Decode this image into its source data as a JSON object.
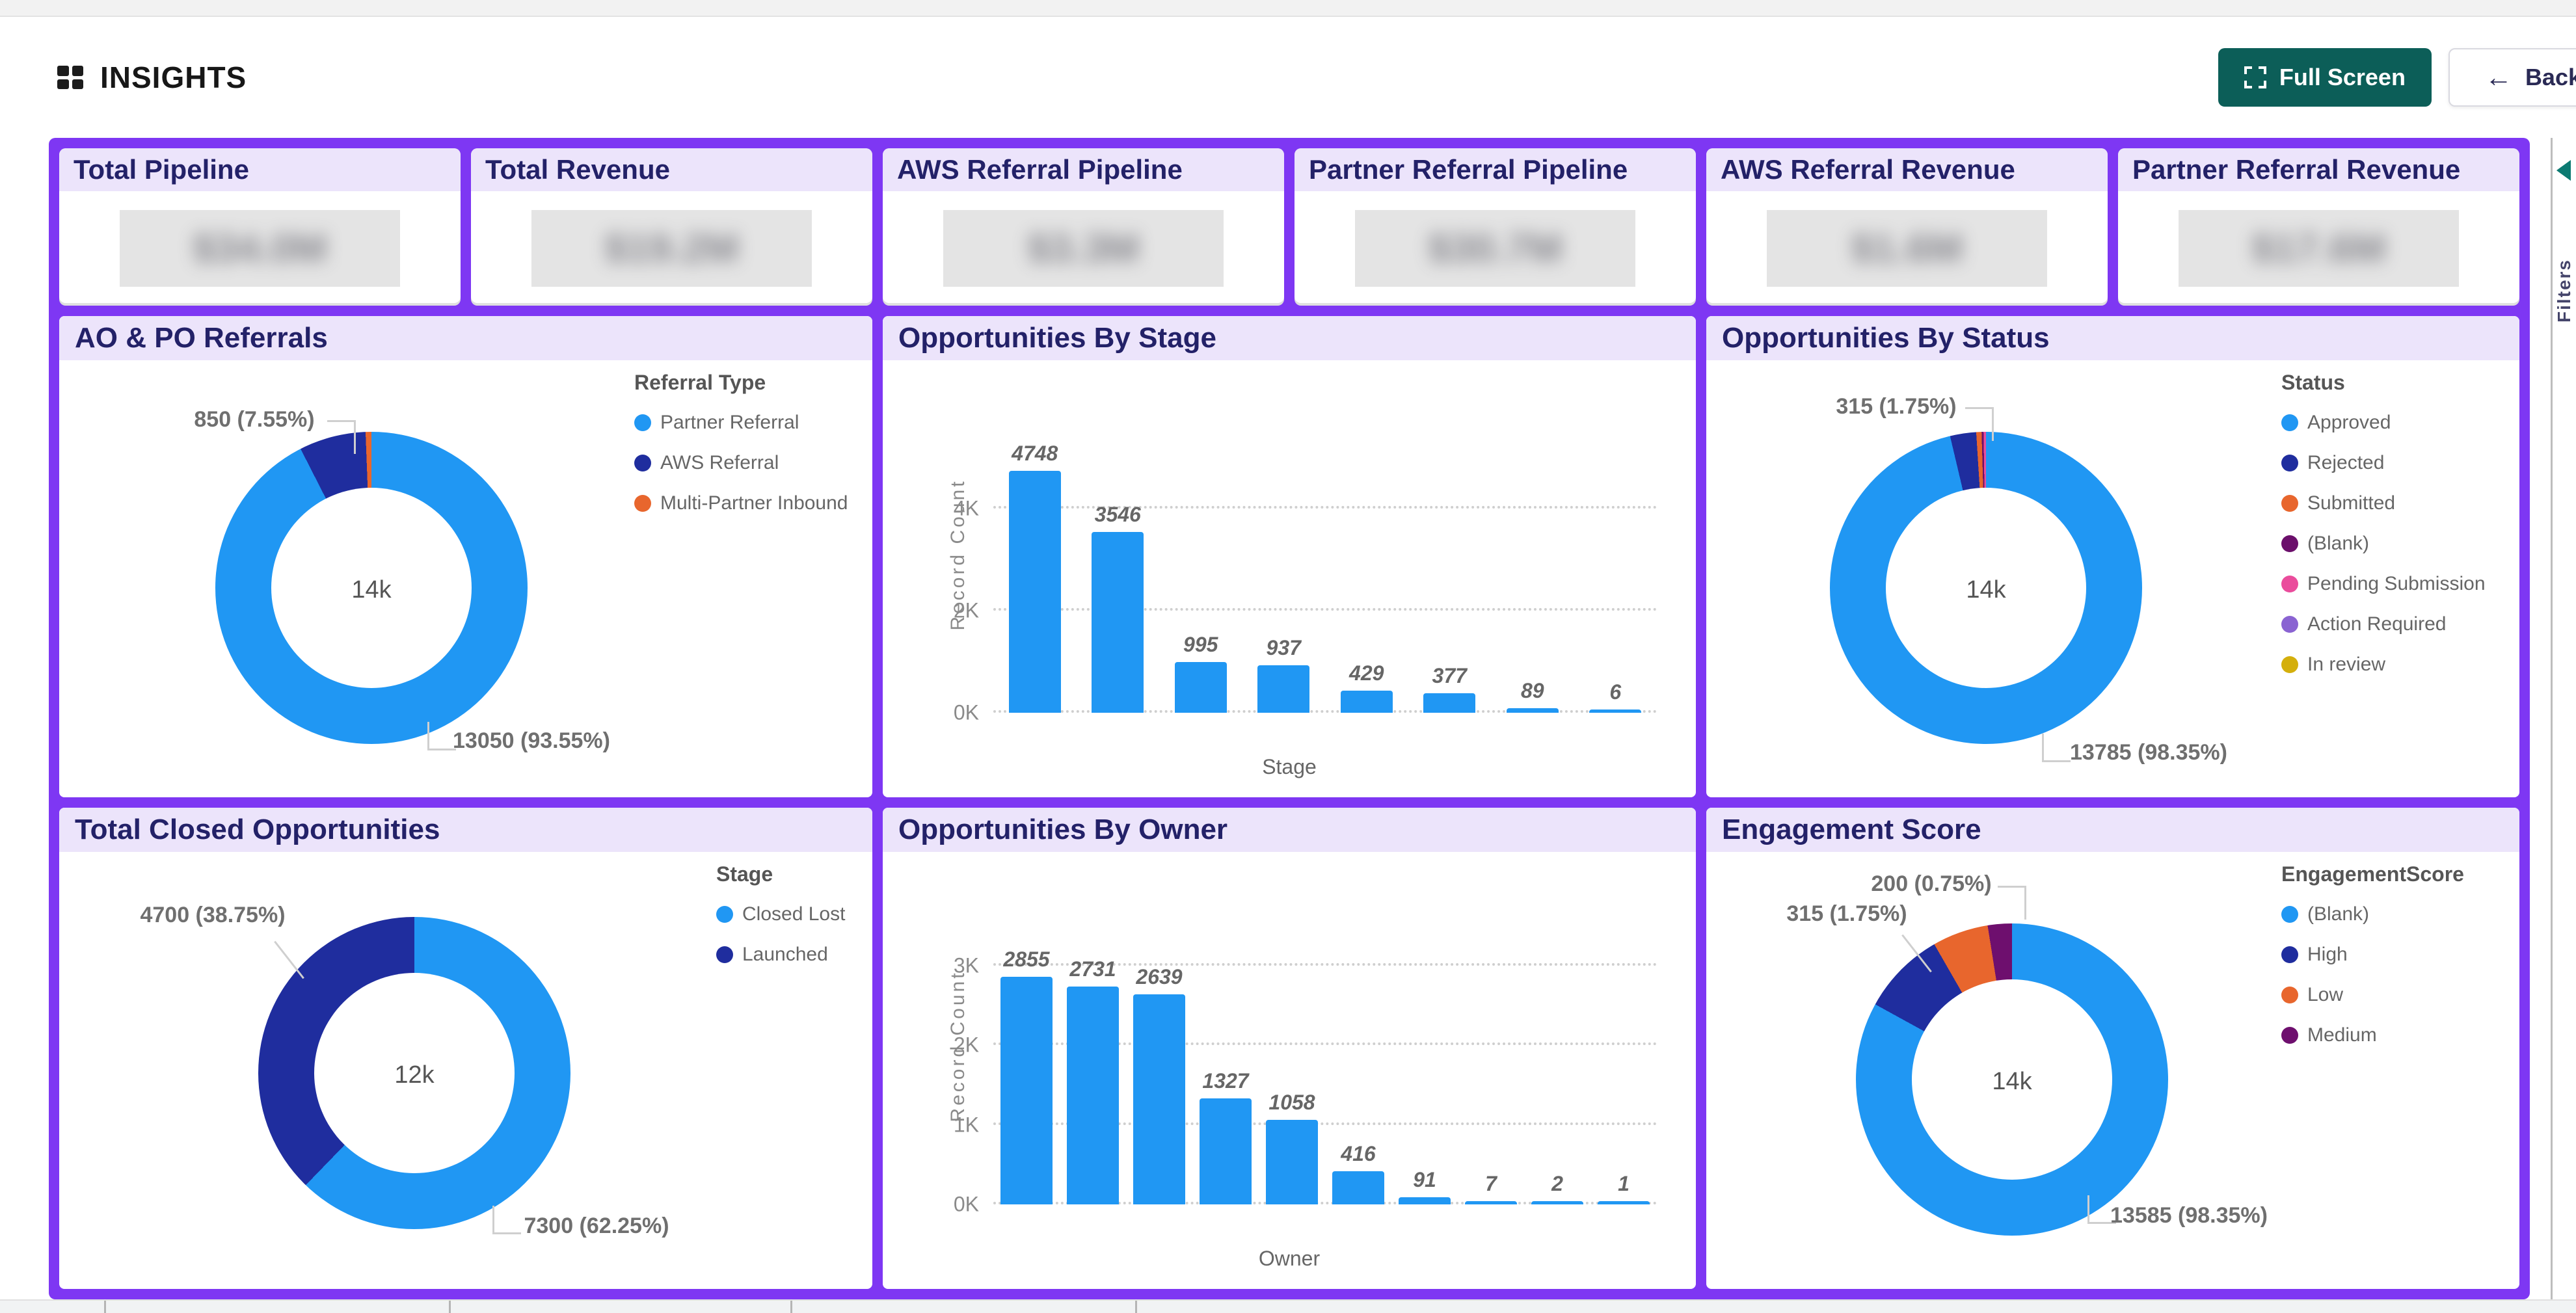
{
  "header": {
    "title": "INSIGHTS",
    "fullscreen_label": "Full Screen",
    "back_label": "Back",
    "accent_teal": "#0c5e58"
  },
  "kpis": [
    {
      "title": "Total Pipeline",
      "blurred_value": "$34.0M"
    },
    {
      "title": "Total Revenue",
      "blurred_value": "$19.2M"
    },
    {
      "title": "AWS Referral Pipeline",
      "blurred_value": "$3.3M"
    },
    {
      "title": "Partner Referral Pipeline",
      "blurred_value": "$30.7M"
    },
    {
      "title": "AWS Referral Revenue",
      "blurred_value": "$1.6M"
    },
    {
      "title": "Partner Referral Revenue",
      "blurred_value": "$17.6M"
    }
  ],
  "filters_rail": {
    "label": "Filters"
  },
  "colors": {
    "dashboard_purple": "#7e37f3",
    "panel_header_lavender": "#ece4fb",
    "title_navy": "#232168",
    "chart_blue": "#2097f3",
    "chart_navy": "#1f2d9e",
    "chart_orange": "#e8662d"
  },
  "chart_data": [
    {
      "type": "donut",
      "title": "AO & PO Referrals",
      "legend_title": "Referral Type",
      "legend_position": "right",
      "center_label": "14k",
      "slices": [
        {
          "label": "Partner Referral",
          "color": "#2097f3",
          "value": 13050,
          "pct": 93.55,
          "arc": [
            0,
            92.5
          ]
        },
        {
          "label": "AWS Referral",
          "color": "#1f2d9e",
          "value": 850,
          "pct": 7.55,
          "arc": [
            92.5,
            99.4
          ]
        },
        {
          "label": "Multi-Partner Inbound",
          "color": "#e8662d",
          "value": null,
          "pct": null,
          "arc": [
            99.4,
            100
          ]
        }
      ],
      "callouts": [
        {
          "text": "850 (7.55%)"
        },
        {
          "text": "13050 (93.55%)"
        }
      ]
    },
    {
      "type": "bar",
      "title": "Opportunities By Stage",
      "ylabel": "Record Count",
      "xlabel": "Stage",
      "categories": [
        "",
        "",
        "",
        "",
        "",
        "",
        "",
        ""
      ],
      "values": [
        4748,
        3546,
        995,
        937,
        429,
        377,
        89,
        6
      ],
      "ymax": 5000,
      "yticks": [
        {
          "label": "0K",
          "v": 0
        },
        {
          "label": "2K",
          "v": 2000
        },
        {
          "label": "4K",
          "v": 4000
        }
      ],
      "bar_color": "#2097f3",
      "grid": true
    },
    {
      "type": "donut",
      "title": "Opportunities By Status",
      "legend_title": "Status",
      "legend_position": "right",
      "center_label": "14k",
      "slices": [
        {
          "label": "Approved",
          "color": "#2097f3",
          "value": 13785,
          "pct": 98.35,
          "arc": [
            0,
            96.3
          ]
        },
        {
          "label": "Rejected",
          "color": "#1f2d9e",
          "value": 315,
          "pct": 1.75,
          "arc": [
            96.3,
            99.0
          ]
        },
        {
          "label": "Submitted",
          "color": "#e8662d",
          "value": null,
          "pct": null,
          "arc": [
            99.0,
            99.55
          ]
        },
        {
          "label": "(Blank)",
          "color": "#6b0f6b",
          "value": null,
          "pct": null,
          "arc": [
            99.55,
            99.75
          ]
        },
        {
          "label": "Pending Submission",
          "color": "#ea4c9c",
          "value": null,
          "pct": null,
          "arc": [
            99.75,
            100
          ]
        },
        {
          "label": "Action Required",
          "color": "#8a63d2",
          "value": null,
          "pct": null,
          "arc": [
            100,
            100
          ]
        },
        {
          "label": "In review",
          "color": "#d4af0c",
          "value": null,
          "pct": null,
          "arc": [
            100,
            100
          ]
        }
      ],
      "callouts": [
        {
          "text": "315 (1.75%)"
        },
        {
          "text": "13785 (98.35%)"
        }
      ]
    },
    {
      "type": "donut",
      "title": "Total Closed Opportunities",
      "legend_title": "Stage",
      "legend_position": "right",
      "center_label": "12k",
      "slices": [
        {
          "label": "Closed Lost",
          "color": "#2097f3",
          "value": 7300,
          "pct": 62.25,
          "arc": [
            0,
            62.25
          ]
        },
        {
          "label": "Launched",
          "color": "#1f2d9e",
          "value": 4700,
          "pct": 38.75,
          "arc": [
            62.25,
            100
          ]
        }
      ],
      "callouts": [
        {
          "text": "4700 (38.75%)"
        },
        {
          "text": "7300 (62.25%)"
        }
      ]
    },
    {
      "type": "bar",
      "title": "Opportunities By Owner",
      "ylabel": "Record Count",
      "xlabel": "Owner",
      "categories": [
        "",
        "",
        "",
        "",
        "",
        "",
        "",
        "",
        "",
        ""
      ],
      "values": [
        2855,
        2731,
        2639,
        1327,
        1058,
        416,
        91,
        7,
        2,
        1
      ],
      "ymax": 3200,
      "yticks": [
        {
          "label": "0K",
          "v": 0
        },
        {
          "label": "1K",
          "v": 1000
        },
        {
          "label": "2K",
          "v": 2000
        },
        {
          "label": "3K",
          "v": 3000
        }
      ],
      "bar_color": "#2097f3",
      "grid": true
    },
    {
      "type": "donut",
      "title": "Engagement Score",
      "legend_title": "EngagementScore",
      "legend_position": "right",
      "center_label": "14k",
      "slices": [
        {
          "label": "(Blank)",
          "color": "#2097f3",
          "value": 13585,
          "pct": 98.35,
          "arc": [
            0,
            83
          ]
        },
        {
          "label": "High",
          "color": "#1f2d9e",
          "value": 315,
          "pct": 1.75,
          "arc": [
            83,
            91.7
          ]
        },
        {
          "label": "Low",
          "color": "#e8662d",
          "value": 200,
          "pct": 0.75,
          "arc": [
            91.7,
            97.5
          ]
        },
        {
          "label": "Medium",
          "color": "#6e0f6e",
          "value": null,
          "pct": null,
          "arc": [
            97.5,
            100
          ]
        }
      ],
      "callouts": [
        {
          "text": "200 (0.75%)"
        },
        {
          "text": "315 (1.75%)"
        },
        {
          "text": "13585 (98.35%)"
        }
      ]
    }
  ]
}
